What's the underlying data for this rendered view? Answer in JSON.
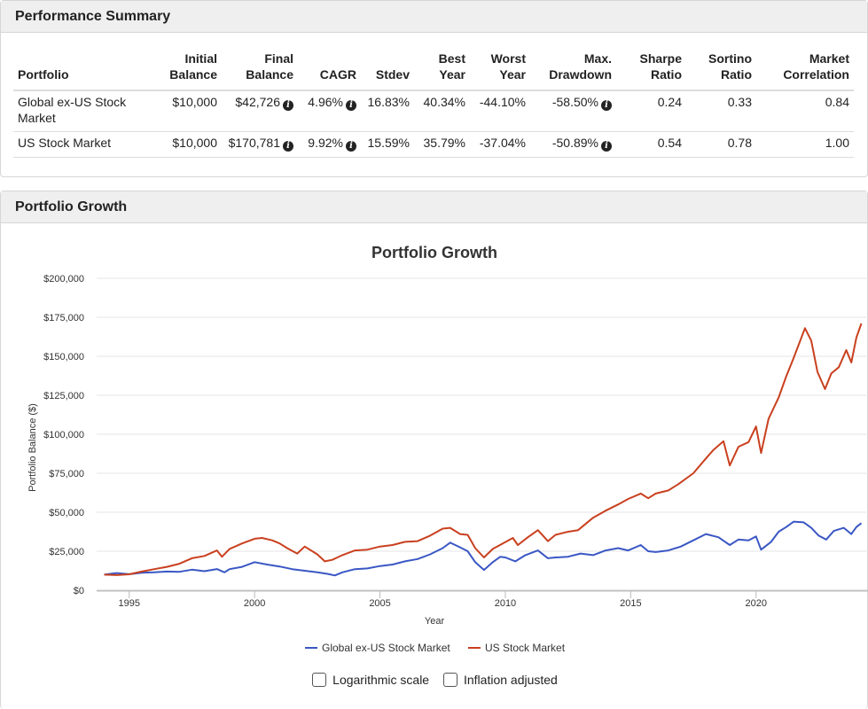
{
  "perf": {
    "title": "Performance Summary",
    "headers": {
      "portfolio": "Portfolio",
      "initial_1": "Initial",
      "initial_2": "Balance",
      "final_1": "Final",
      "final_2": "Balance",
      "cagr": "CAGR",
      "stdev": "Stdev",
      "best_1": "Best",
      "best_2": "Year",
      "worst_1": "Worst",
      "worst_2": "Year",
      "dd_1": "Max.",
      "dd_2": "Drawdown",
      "sharpe_1": "Sharpe",
      "sharpe_2": "Ratio",
      "sortino_1": "Sortino",
      "sortino_2": "Ratio",
      "corr_1": "Market",
      "corr_2": "Correlation"
    },
    "rows": [
      {
        "name_1": "Global ex-US Stock",
        "name_2": "Market",
        "initial": "$10,000",
        "final": "$42,726",
        "cagr": "4.96%",
        "stdev": "16.83%",
        "best": "40.34%",
        "worst": "-44.10%",
        "drawdown": "-58.50%",
        "sharpe": "0.24",
        "sortino": "0.33",
        "corr": "0.84"
      },
      {
        "name_1": "US Stock Market",
        "name_2": "",
        "initial": "$10,000",
        "final": "$170,781",
        "cagr": "9.92%",
        "stdev": "15.59%",
        "best": "35.79%",
        "worst": "-37.04%",
        "drawdown": "-50.89%",
        "sharpe": "0.54",
        "sortino": "0.78",
        "corr": "1.00"
      }
    ]
  },
  "growth": {
    "title": "Portfolio Growth",
    "options": {
      "log_label": "Logarithmic scale",
      "infl_label": "Inflation adjusted"
    }
  },
  "chart_data": {
    "type": "line",
    "title": "Portfolio Growth",
    "xlabel": "Year",
    "ylabel": "Portfolio Balance ($)",
    "xlim": [
      1993.7,
      2024.5
    ],
    "ylim": [
      0,
      200000
    ],
    "xticks": [
      1995,
      2000,
      2005,
      2010,
      2015,
      2020
    ],
    "yticks": [
      {
        "value": 0,
        "label": "$0"
      },
      {
        "value": 25000,
        "label": "$25,000"
      },
      {
        "value": 50000,
        "label": "$50,000"
      },
      {
        "value": 75000,
        "label": "$75,000"
      },
      {
        "value": 100000,
        "label": "$100,000"
      },
      {
        "value": 125000,
        "label": "$125,000"
      },
      {
        "value": 150000,
        "label": "$150,000"
      },
      {
        "value": 175000,
        "label": "$175,000"
      },
      {
        "value": 200000,
        "label": "$200,000"
      }
    ],
    "series": [
      {
        "name": "Global ex-US Stock Market",
        "color": "#3a57c4",
        "points": [
          [
            1994.0,
            10000
          ],
          [
            1994.5,
            11000
          ],
          [
            1995.0,
            10300
          ],
          [
            1995.5,
            11200
          ],
          [
            1996.0,
            11500
          ],
          [
            1996.5,
            12000
          ],
          [
            1997.0,
            11800
          ],
          [
            1997.5,
            13200
          ],
          [
            1998.0,
            12200
          ],
          [
            1998.5,
            13600
          ],
          [
            1998.8,
            11500
          ],
          [
            1999.0,
            13500
          ],
          [
            1999.5,
            15000
          ],
          [
            2000.0,
            18000
          ],
          [
            2000.5,
            16500
          ],
          [
            2001.0,
            15200
          ],
          [
            2001.5,
            13500
          ],
          [
            2002.0,
            12500
          ],
          [
            2002.5,
            11500
          ],
          [
            2002.9,
            10500
          ],
          [
            2003.2,
            9500
          ],
          [
            2003.5,
            11500
          ],
          [
            2004.0,
            13500
          ],
          [
            2004.5,
            14000
          ],
          [
            2005.0,
            15500
          ],
          [
            2005.5,
            16500
          ],
          [
            2006.0,
            18500
          ],
          [
            2006.5,
            20000
          ],
          [
            2007.0,
            23000
          ],
          [
            2007.5,
            27000
          ],
          [
            2007.8,
            30500
          ],
          [
            2008.2,
            27500
          ],
          [
            2008.5,
            25000
          ],
          [
            2008.8,
            18000
          ],
          [
            2009.15,
            13000
          ],
          [
            2009.5,
            18000
          ],
          [
            2009.8,
            21500
          ],
          [
            2010.0,
            21000
          ],
          [
            2010.4,
            18500
          ],
          [
            2010.8,
            22500
          ],
          [
            2011.3,
            25500
          ],
          [
            2011.7,
            20500
          ],
          [
            2012.0,
            21000
          ],
          [
            2012.5,
            21500
          ],
          [
            2013.0,
            23500
          ],
          [
            2013.5,
            22500
          ],
          [
            2014.0,
            25500
          ],
          [
            2014.5,
            27000
          ],
          [
            2014.9,
            25500
          ],
          [
            2015.4,
            29000
          ],
          [
            2015.7,
            25000
          ],
          [
            2016.0,
            24500
          ],
          [
            2016.5,
            25500
          ],
          [
            2017.0,
            28000
          ],
          [
            2017.5,
            32000
          ],
          [
            2018.0,
            36000
          ],
          [
            2018.5,
            34000
          ],
          [
            2018.95,
            29000
          ],
          [
            2019.3,
            32500
          ],
          [
            2019.7,
            32000
          ],
          [
            2020.0,
            34500
          ],
          [
            2020.2,
            26000
          ],
          [
            2020.6,
            31000
          ],
          [
            2020.9,
            37500
          ],
          [
            2021.2,
            40500
          ],
          [
            2021.5,
            44000
          ],
          [
            2021.9,
            43500
          ],
          [
            2022.2,
            40000
          ],
          [
            2022.5,
            35000
          ],
          [
            2022.8,
            32500
          ],
          [
            2023.1,
            38000
          ],
          [
            2023.5,
            40000
          ],
          [
            2023.8,
            36000
          ],
          [
            2024.0,
            40500
          ],
          [
            2024.2,
            43000
          ]
        ]
      },
      {
        "name": "US Stock Market",
        "color": "#c9401f",
        "points": [
          [
            1994.0,
            10000
          ],
          [
            1994.5,
            9700
          ],
          [
            1995.0,
            10200
          ],
          [
            1995.5,
            12000
          ],
          [
            1996.0,
            13500
          ],
          [
            1996.5,
            15000
          ],
          [
            1997.0,
            17000
          ],
          [
            1997.5,
            20500
          ],
          [
            1998.0,
            22000
          ],
          [
            1998.5,
            25500
          ],
          [
            1998.7,
            21500
          ],
          [
            1999.0,
            26500
          ],
          [
            1999.5,
            30000
          ],
          [
            2000.0,
            33000
          ],
          [
            2000.3,
            33500
          ],
          [
            2000.7,
            32000
          ],
          [
            2001.0,
            30000
          ],
          [
            2001.3,
            27000
          ],
          [
            2001.7,
            23500
          ],
          [
            2002.0,
            28000
          ],
          [
            2002.5,
            23000
          ],
          [
            2002.8,
            18500
          ],
          [
            2003.1,
            19500
          ],
          [
            2003.5,
            22500
          ],
          [
            2004.0,
            25500
          ],
          [
            2004.5,
            26000
          ],
          [
            2005.0,
            28000
          ],
          [
            2005.5,
            29000
          ],
          [
            2006.0,
            31000
          ],
          [
            2006.5,
            31500
          ],
          [
            2007.0,
            35000
          ],
          [
            2007.5,
            39500
          ],
          [
            2007.8,
            40000
          ],
          [
            2008.2,
            36000
          ],
          [
            2008.5,
            35500
          ],
          [
            2008.8,
            27000
          ],
          [
            2009.15,
            21000
          ],
          [
            2009.5,
            26500
          ],
          [
            2009.9,
            30000
          ],
          [
            2010.3,
            33500
          ],
          [
            2010.5,
            29000
          ],
          [
            2010.9,
            34000
          ],
          [
            2011.3,
            38500
          ],
          [
            2011.7,
            31500
          ],
          [
            2012.0,
            35500
          ],
          [
            2012.5,
            37500
          ],
          [
            2012.9,
            38500
          ],
          [
            2013.5,
            46500
          ],
          [
            2014.0,
            51000
          ],
          [
            2014.5,
            55000
          ],
          [
            2014.9,
            58500
          ],
          [
            2015.4,
            62000
          ],
          [
            2015.7,
            59000
          ],
          [
            2016.0,
            62000
          ],
          [
            2016.5,
            64000
          ],
          [
            2016.9,
            68000
          ],
          [
            2017.5,
            75000
          ],
          [
            2018.0,
            84500
          ],
          [
            2018.3,
            90000
          ],
          [
            2018.7,
            95500
          ],
          [
            2018.95,
            80000
          ],
          [
            2019.3,
            92000
          ],
          [
            2019.7,
            95000
          ],
          [
            2020.0,
            105000
          ],
          [
            2020.2,
            88000
          ],
          [
            2020.5,
            110000
          ],
          [
            2020.9,
            123500
          ],
          [
            2021.2,
            137000
          ],
          [
            2021.5,
            149000
          ],
          [
            2021.95,
            168000
          ],
          [
            2022.2,
            160000
          ],
          [
            2022.45,
            140000
          ],
          [
            2022.75,
            129000
          ],
          [
            2023.0,
            139000
          ],
          [
            2023.3,
            143000
          ],
          [
            2023.6,
            154000
          ],
          [
            2023.8,
            146000
          ],
          [
            2024.0,
            162000
          ],
          [
            2024.2,
            171000
          ]
        ]
      }
    ]
  }
}
